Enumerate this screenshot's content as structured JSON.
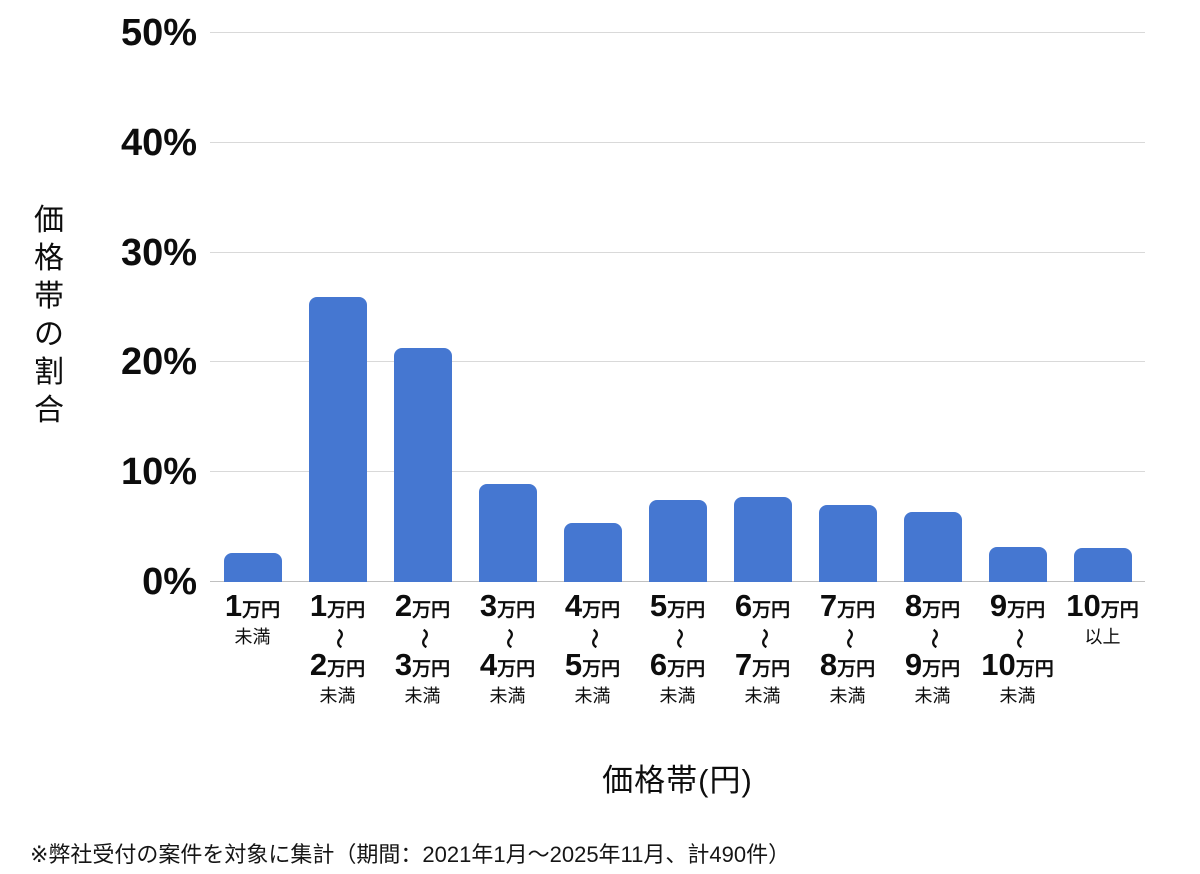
{
  "chart_data": {
    "type": "bar",
    "title": "",
    "xlabel": "価格帯(円)",
    "ylabel": "価格帯の割合",
    "ylim": [
      0,
      50
    ],
    "grid": true,
    "legend": "none",
    "bar_color": "#4577d1",
    "gridline_color": "#d9d9d9",
    "y_ticks": [
      {
        "value": 0,
        "label": "0%"
      },
      {
        "value": 10,
        "label": "10%"
      },
      {
        "value": 20,
        "label": "20%"
      },
      {
        "value": 30,
        "label": "30%"
      },
      {
        "value": 40,
        "label": "40%"
      },
      {
        "value": 50,
        "label": "50%"
      }
    ],
    "categories": [
      {
        "label": "1万円未満",
        "lines": [
          "1万円",
          "未満"
        ]
      },
      {
        "label": "1万円〜2万円未満",
        "lines": [
          "1万円",
          "〜",
          "2万円",
          "未満"
        ]
      },
      {
        "label": "2万円〜3万円未満",
        "lines": [
          "2万円",
          "〜",
          "3万円",
          "未満"
        ]
      },
      {
        "label": "3万円〜4万円未満",
        "lines": [
          "3万円",
          "〜",
          "4万円",
          "未満"
        ]
      },
      {
        "label": "4万円〜5万円未満",
        "lines": [
          "4万円",
          "〜",
          "5万円",
          "未満"
        ]
      },
      {
        "label": "5万円〜6万円未満",
        "lines": [
          "5万円",
          "〜",
          "6万円",
          "未満"
        ]
      },
      {
        "label": "6万円〜7万円未満",
        "lines": [
          "6万円",
          "〜",
          "7万円",
          "未満"
        ]
      },
      {
        "label": "7万円〜8万円未満",
        "lines": [
          "7万円",
          "〜",
          "8万円",
          "未満"
        ]
      },
      {
        "label": "8万円〜9万円未満",
        "lines": [
          "8万円",
          "〜",
          "9万円",
          "未満"
        ]
      },
      {
        "label": "9万円〜10万円未満",
        "lines": [
          "9万円",
          "〜",
          "10万円",
          "未満"
        ]
      },
      {
        "label": "10万円以上",
        "lines": [
          "10万円",
          "以上"
        ]
      }
    ],
    "values": [
      2.6,
      26.0,
      21.3,
      8.9,
      5.4,
      7.5,
      7.7,
      7.0,
      6.4,
      3.2,
      3.1
    ]
  },
  "footnote": "※弊社受付の案件を対象に集計（期間：2021年1月～2025年11月、計490件）"
}
